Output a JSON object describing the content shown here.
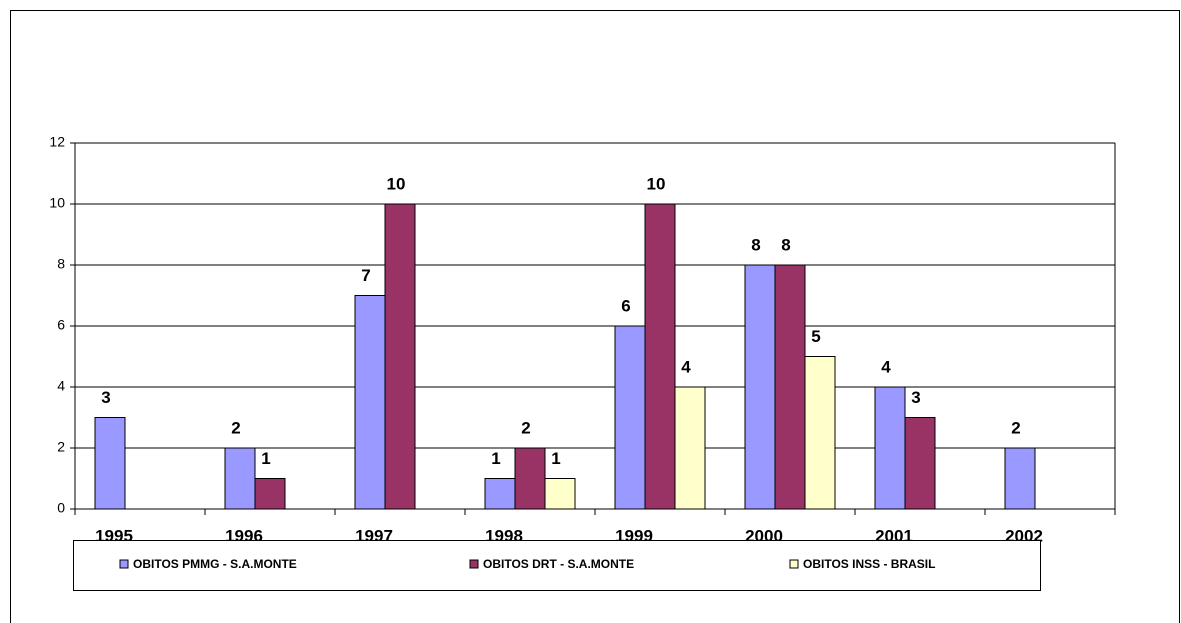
{
  "chart_data": {
    "type": "bar",
    "categories": [
      "1995",
      "1996",
      "1997",
      "1998",
      "1999",
      "2000",
      "2001",
      "2002"
    ],
    "series": [
      {
        "name": "OBITOS PMMG - S.A.MONTE",
        "color": "#9999ff",
        "values": [
          3,
          2,
          7,
          1,
          6,
          8,
          4,
          2
        ]
      },
      {
        "name": "OBITOS DRT - S.A.MONTE",
        "color": "#993366",
        "values": [
          null,
          1,
          10,
          2,
          10,
          8,
          3,
          null
        ]
      },
      {
        "name": "OBITOS INSS - BRASIL",
        "color": "#ffffcc",
        "values": [
          null,
          null,
          null,
          1,
          4,
          5,
          null,
          null
        ]
      }
    ],
    "ylim": [
      0,
      12
    ],
    "yticks": [
      0,
      2,
      4,
      6,
      8,
      10,
      12
    ],
    "grid": true,
    "legend": "bottom"
  }
}
